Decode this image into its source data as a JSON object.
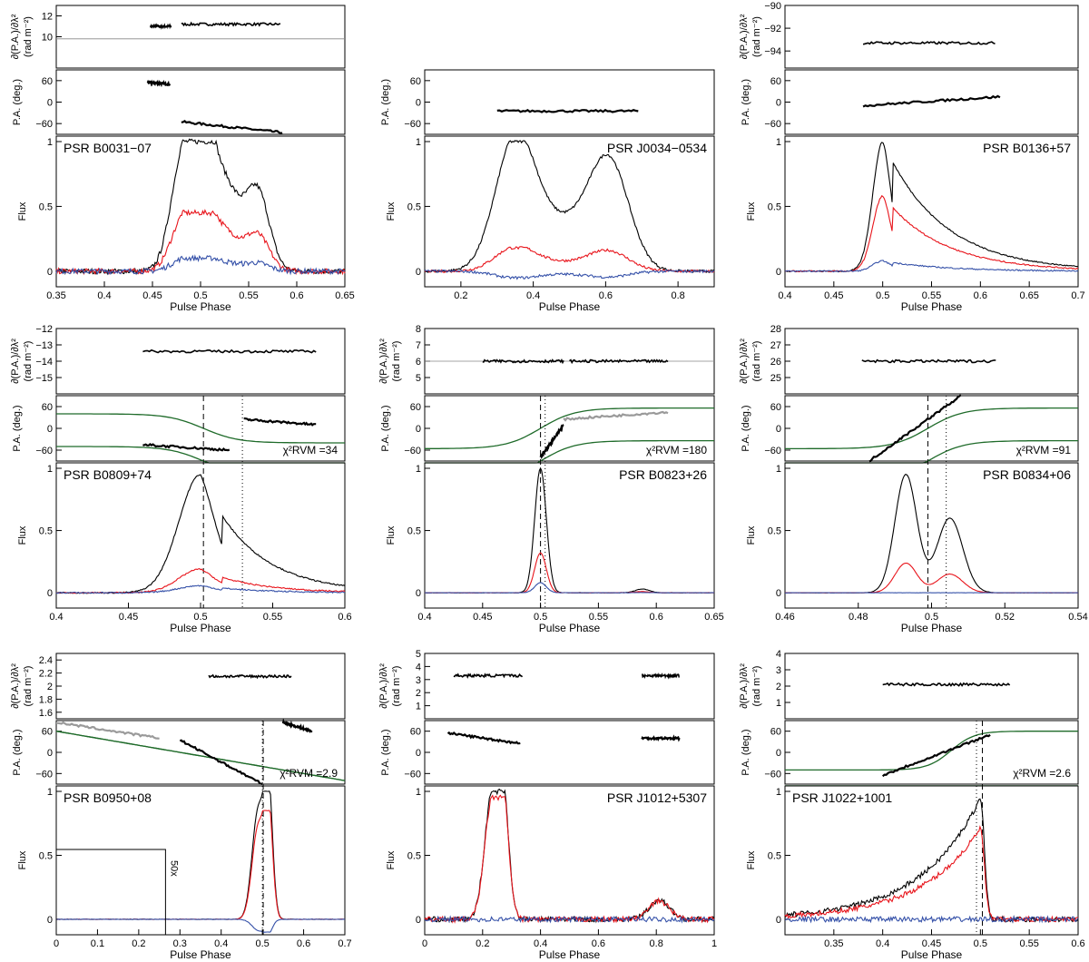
{
  "colors": {
    "total": "#000000",
    "linear": "#e8141b",
    "circular": "#3450a8",
    "rvm": "#1f6b2a",
    "gray": "#9a9a9a"
  },
  "labels": {
    "rm_top": "∂(P.A.)/∂λ²",
    "rm_units": "(rad m⁻²)",
    "pa": "P.A. (deg.)",
    "flux": "Flux",
    "phase": "Pulse Phase",
    "chi": "χ²RVM ="
  },
  "chart_data": [
    {
      "pulsar": "PSR B0031−07",
      "name_pos": "left",
      "type": "line",
      "xlim": [
        0.35,
        0.65
      ],
      "xticks": [
        "0.35",
        "0.4",
        "0.45",
        "0.5",
        "0.55",
        "0.6",
        "0.65"
      ],
      "xtickvals": [
        0.35,
        0.4,
        0.45,
        0.5,
        0.55,
        0.6,
        0.65
      ],
      "rm_lim": [
        7,
        13
      ],
      "rm_ticks": [
        "10",
        "12"
      ],
      "rm_tickvals": [
        10,
        12
      ],
      "rm_ref": 9.8,
      "rm_segments": [
        {
          "x0": 0.448,
          "x1": 0.47,
          "y": 11.0
        },
        {
          "x0": 0.48,
          "x1": 0.583,
          "y": 11.2
        }
      ],
      "pa_ticks": [
        "60",
        "0",
        "−60"
      ],
      "pa_tickvals": [
        60,
        0,
        -60
      ],
      "pa_segments": [
        {
          "x0": 0.445,
          "x1": 0.468,
          "y0": 55,
          "y1": 50,
          "c": "black"
        },
        {
          "x0": 0.48,
          "x1": 0.585,
          "y0": -55,
          "y1": -85,
          "c": "black"
        }
      ],
      "flux_ticks": [
        "0",
        "0.5",
        "1"
      ],
      "flux_tickvals": [
        0,
        0.5,
        1
      ],
      "profile": {
        "peaks": [
          {
            "c": 0.48,
            "w": 0.012,
            "a": 0.75
          },
          {
            "c": 0.5,
            "w": 0.01,
            "a": 0.9
          },
          {
            "c": 0.52,
            "w": 0.02,
            "a": 0.75
          },
          {
            "c": 0.56,
            "w": 0.012,
            "a": 0.55
          }
        ],
        "lin": 0.45,
        "circ": 0.1,
        "noise": 0.04
      },
      "chi2": null,
      "dashed": null,
      "dotted": null
    },
    {
      "pulsar": "PSR J0034−0534",
      "name_pos": "right",
      "type": "line",
      "xlim": [
        0.1,
        0.9
      ],
      "xticks": [
        "0.2",
        "0.4",
        "0.6",
        "0.8"
      ],
      "xtickvals": [
        0.2,
        0.4,
        0.6,
        0.8
      ],
      "rm_lim": null,
      "rm_ticks": [],
      "rm_tickvals": [],
      "rm_ref": null,
      "rm_segments": [],
      "pa_ticks": [
        "60",
        "0",
        "−60"
      ],
      "pa_tickvals": [
        60,
        0,
        -60
      ],
      "pa_segments": [
        {
          "x0": 0.3,
          "x1": 0.69,
          "y0": -25,
          "y1": -25,
          "c": "black"
        }
      ],
      "flux_ticks": [
        "0",
        "0.5",
        "1"
      ],
      "flux_tickvals": [
        0,
        0.5,
        1
      ],
      "profile": {
        "peaks": [
          {
            "c": 0.35,
            "w": 0.055,
            "a": 0.98
          },
          {
            "c": 0.61,
            "w": 0.055,
            "a": 0.8
          },
          {
            "c": 0.48,
            "w": 0.08,
            "a": 0.35
          }
        ],
        "lin": 0.18,
        "circ": -0.05,
        "noise": 0.02
      },
      "chi2": null,
      "dashed": null,
      "dotted": null
    },
    {
      "pulsar": "PSR B0136+57",
      "name_pos": "right",
      "type": "line",
      "xlim": [
        0.4,
        0.7
      ],
      "xticks": [
        "0.4",
        "0.45",
        "0.5",
        "0.55",
        "0.6",
        "0.65",
        "0.7"
      ],
      "xtickvals": [
        0.4,
        0.45,
        0.5,
        0.55,
        0.6,
        0.65,
        0.7
      ],
      "rm_lim": [
        -95.5,
        -90
      ],
      "rm_ticks": [
        "−90",
        "−92",
        "−94"
      ],
      "rm_tickvals": [
        -90,
        -92,
        -94
      ],
      "rm_ref": null,
      "rm_segments": [
        {
          "x0": 0.48,
          "x1": 0.615,
          "y": -93.3
        }
      ],
      "pa_ticks": [
        "60",
        "0",
        "−60"
      ],
      "pa_tickvals": [
        60,
        0,
        -60
      ],
      "pa_segments": [
        {
          "x0": 0.48,
          "x1": 0.62,
          "y0": -10,
          "y1": 15,
          "c": "black"
        }
      ],
      "flux_ticks": [
        "0",
        "0.5",
        "1"
      ],
      "flux_tickvals": [
        0,
        0.5,
        1
      ],
      "profile": {
        "peaks": [
          {
            "c": 0.5,
            "w": 0.01,
            "a": 1.0,
            "tail": 0.06
          }
        ],
        "lin": 0.58,
        "circ": 0.08,
        "noise": 0.01
      },
      "chi2": null,
      "dashed": null,
      "dotted": null
    },
    {
      "pulsar": "PSR B0809+74",
      "name_pos": "left",
      "type": "line",
      "xlim": [
        0.4,
        0.6
      ],
      "xticks": [
        "0.4",
        "0.45",
        "0.5",
        "0.55",
        "0.6"
      ],
      "xtickvals": [
        0.4,
        0.45,
        0.5,
        0.55,
        0.6
      ],
      "rm_lim": [
        -16,
        -12
      ],
      "rm_ticks": [
        "−12",
        "−13",
        "−14",
        "−15"
      ],
      "rm_tickvals": [
        -12,
        -13,
        -14,
        -15
      ],
      "rm_ref": null,
      "rm_segments": [
        {
          "x0": 0.46,
          "x1": 0.58,
          "y": -13.4
        }
      ],
      "pa_ticks": [
        "60",
        "0",
        "−60"
      ],
      "pa_tickvals": [
        60,
        0,
        -60
      ],
      "pa_segments": [
        {
          "x0": 0.46,
          "x1": 0.52,
          "y0": -45,
          "y1": -60,
          "c": "black"
        },
        {
          "x0": 0.53,
          "x1": 0.58,
          "y0": 25,
          "y1": 10,
          "c": "black"
        }
      ],
      "flux_ticks": [
        "0",
        "0.5",
        "1"
      ],
      "flux_tickvals": [
        0,
        0.5,
        1
      ],
      "profile": {
        "peaks": [
          {
            "c": 0.5,
            "w": 0.015,
            "a": 0.95,
            "tail": 0.035
          }
        ],
        "lin": 0.2,
        "circ": 0.06,
        "noise": 0.01
      },
      "chi2": "34",
      "dashed": 0.502,
      "dotted": 0.529
    },
    {
      "pulsar": "PSR B0823+26",
      "name_pos": "right",
      "type": "line",
      "xlim": [
        0.4,
        0.65
      ],
      "xticks": [
        "0.4",
        "0.45",
        "0.5",
        "0.55",
        "0.6",
        "0.65"
      ],
      "xtickvals": [
        0.4,
        0.45,
        0.5,
        0.55,
        0.6,
        0.65
      ],
      "rm_lim": [
        4,
        8
      ],
      "rm_ticks": [
        "5",
        "6",
        "7",
        "8"
      ],
      "rm_tickvals": [
        5,
        6,
        7,
        8
      ],
      "rm_ref": 6.0,
      "rm_segments": [
        {
          "x0": 0.45,
          "x1": 0.52,
          "y": 6.0
        },
        {
          "x0": 0.525,
          "x1": 0.61,
          "y": 6.0
        }
      ],
      "pa_ticks": [
        "60",
        "0",
        "−60"
      ],
      "pa_tickvals": [
        60,
        0,
        -60
      ],
      "pa_segments": [
        {
          "x0": 0.5,
          "x1": 0.52,
          "y0": -80,
          "y1": 10,
          "c": "black"
        },
        {
          "x0": 0.52,
          "x1": 0.61,
          "y0": 25,
          "y1": 45,
          "c": "gray"
        }
      ],
      "flux_ticks": [
        "0",
        "0.5",
        "1"
      ],
      "flux_tickvals": [
        0,
        0.5,
        1
      ],
      "profile": {
        "peaks": [
          {
            "c": 0.5,
            "w": 0.005,
            "a": 1.0
          },
          {
            "c": 0.588,
            "w": 0.006,
            "a": 0.03
          }
        ],
        "lin": 0.32,
        "circ": 0.08,
        "noise": 0.003
      },
      "chi2": "180",
      "dashed": 0.5,
      "dotted": 0.504
    },
    {
      "pulsar": "PSR B0834+06",
      "name_pos": "right",
      "type": "line",
      "xlim": [
        0.46,
        0.54
      ],
      "xticks": [
        "0.46",
        "0.48",
        "0.5",
        "0.52",
        "0.54"
      ],
      "xtickvals": [
        0.46,
        0.48,
        0.5,
        0.52,
        0.54
      ],
      "rm_lim": [
        24,
        28
      ],
      "rm_ticks": [
        "25",
        "26",
        "27",
        "28"
      ],
      "rm_tickvals": [
        25,
        26,
        27,
        28
      ],
      "rm_ref": null,
      "rm_segments": [
        {
          "x0": 0.481,
          "x1": 0.518,
          "y": 26.0
        }
      ],
      "pa_ticks": [
        "60",
        "0",
        "−60"
      ],
      "pa_tickvals": [
        60,
        0,
        -60
      ],
      "pa_segments": [
        {
          "x0": 0.483,
          "x1": 0.508,
          "y0": -90,
          "y1": 90,
          "c": "black"
        }
      ],
      "flux_ticks": [
        "0",
        "0.5",
        "1"
      ],
      "flux_tickvals": [
        0,
        0.5,
        1
      ],
      "profile": {
        "peaks": [
          {
            "c": 0.493,
            "w": 0.003,
            "a": 0.95
          },
          {
            "c": 0.505,
            "w": 0.0035,
            "a": 0.6
          }
        ],
        "lin": 0.25,
        "circ": 0.0,
        "noise": 0.002
      },
      "chi2": "91",
      "dashed": 0.499,
      "dotted": 0.504
    },
    {
      "pulsar": "PSR B0950+08",
      "name_pos": "left",
      "type": "line",
      "xlim": [
        0,
        0.7
      ],
      "xticks": [
        "0",
        "0.1",
        "0.2",
        "0.3",
        "0.4",
        "0.5",
        "0.6",
        "0.7"
      ],
      "xtickvals": [
        0,
        0.1,
        0.2,
        0.3,
        0.4,
        0.5,
        0.6,
        0.7
      ],
      "rm_lim": [
        1.5,
        2.5
      ],
      "rm_ticks": [
        "1.6",
        "1.8",
        "2",
        "2.2",
        "2.4"
      ],
      "rm_tickvals": [
        1.6,
        1.8,
        2.0,
        2.2,
        2.4
      ],
      "rm_ref": null,
      "rm_segments": [
        {
          "x0": 0.37,
          "x1": 0.57,
          "y": 2.15
        }
      ],
      "pa_ticks": [
        "60",
        "0",
        "−60"
      ],
      "pa_tickvals": [
        60,
        0,
        -60
      ],
      "pa_segments": [
        {
          "x0": 0.0,
          "x1": 0.25,
          "y0": 85,
          "y1": 40,
          "c": "gray"
        },
        {
          "x0": 0.3,
          "x1": 0.5,
          "y0": 35,
          "y1": -90,
          "c": "black"
        },
        {
          "x0": 0.55,
          "x1": 0.62,
          "y0": 85,
          "y1": 60,
          "c": "black"
        }
      ],
      "flux_ticks": [
        "0",
        "0.5",
        "1"
      ],
      "flux_tickvals": [
        0,
        0.5,
        1
      ],
      "profile": {
        "peaks": [
          {
            "c": 0.49,
            "w": 0.015,
            "a": 0.85
          },
          {
            "c": 0.515,
            "w": 0.01,
            "a": 0.95
          }
        ],
        "lin": 0.85,
        "circ": -0.1,
        "noise": 0.003
      },
      "inset_label": "50x",
      "chi2": "2.9",
      "dashed": 0.502,
      "dotted": 0.5
    },
    {
      "pulsar": "PSR J1012+5307",
      "name_pos": "right",
      "type": "line",
      "xlim": [
        0,
        1
      ],
      "xticks": [
        "0",
        "0.2",
        "0.4",
        "0.6",
        "0.8",
        "1"
      ],
      "xtickvals": [
        0,
        0.2,
        0.4,
        0.6,
        0.8,
        1
      ],
      "rm_lim": [
        0,
        5
      ],
      "rm_ticks": [
        "1",
        "2",
        "3",
        "4",
        "5"
      ],
      "rm_tickvals": [
        1,
        2,
        3,
        4,
        5
      ],
      "rm_ref": null,
      "rm_segments": [
        {
          "x0": 0.1,
          "x1": 0.34,
          "y": 3.3
        },
        {
          "x0": 0.75,
          "x1": 0.88,
          "y": 3.3
        }
      ],
      "pa_ticks": [
        "60",
        "0",
        "−60"
      ],
      "pa_tickvals": [
        60,
        0,
        -60
      ],
      "pa_segments": [
        {
          "x0": 0.08,
          "x1": 0.33,
          "y0": 55,
          "y1": 25,
          "c": "black"
        },
        {
          "x0": 0.75,
          "x1": 0.88,
          "y0": 40,
          "y1": 40,
          "c": "black"
        }
      ],
      "flux_ticks": [
        "0",
        "0.5",
        "1"
      ],
      "flux_tickvals": [
        0,
        0.5,
        1
      ],
      "profile": {
        "peaks": [
          {
            "c": 0.23,
            "w": 0.025,
            "a": 0.9
          },
          {
            "c": 0.27,
            "w": 0.02,
            "a": 0.95
          },
          {
            "c": 0.81,
            "w": 0.035,
            "a": 0.15
          }
        ],
        "lin": 0.95,
        "circ": 0.0,
        "noise": 0.04
      },
      "chi2": null,
      "dashed": null,
      "dotted": null
    },
    {
      "pulsar": "PSR J1022+1001",
      "name_pos": "left",
      "type": "line",
      "xlim": [
        0.3,
        0.6
      ],
      "xticks": [
        "0.35",
        "0.4",
        "0.45",
        "0.5",
        "0.55",
        "0.6"
      ],
      "xtickvals": [
        0.35,
        0.4,
        0.45,
        0.5,
        0.55,
        0.6
      ],
      "rm_lim": [
        0,
        4
      ],
      "rm_ticks": [
        "1",
        "2",
        "3",
        "4"
      ],
      "rm_tickvals": [
        1,
        2,
        3,
        4
      ],
      "rm_ref": null,
      "rm_segments": [
        {
          "x0": 0.4,
          "x1": 0.53,
          "y": 2.1
        }
      ],
      "pa_ticks": [
        "60",
        "0",
        "−60"
      ],
      "pa_tickvals": [
        60,
        0,
        -60
      ],
      "pa_segments": [
        {
          "x0": 0.4,
          "x1": 0.51,
          "y0": -65,
          "y1": 50,
          "c": "black"
        }
      ],
      "flux_ticks": [
        "0",
        "0.5",
        "1"
      ],
      "flux_tickvals": [
        0,
        0.5,
        1
      ],
      "profile": {
        "peaks": [
          {
            "c": 0.5,
            "w": 0.03,
            "a": 0.95,
            "rise": true
          }
        ],
        "lin": 0.75,
        "circ": 0.0,
        "noise": 0.04
      },
      "chi2": "2.6",
      "dashed": 0.502,
      "dotted": 0.496
    }
  ]
}
